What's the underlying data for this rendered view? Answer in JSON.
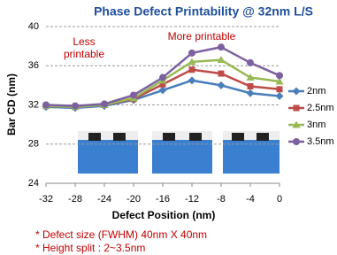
{
  "chart_data": {
    "type": "line",
    "title": "Phase Defect Printability @ 32nm L/S",
    "x_label": "Defect Position (nm)",
    "y_label": "Bar CD (nm)",
    "x": [
      -32,
      -28,
      -24,
      -20,
      -16,
      -12,
      -8,
      -4,
      0
    ],
    "xlim": [
      -32,
      0
    ],
    "xticks": [
      -32,
      -28,
      -24,
      -20,
      -16,
      -12,
      -8,
      -4,
      0
    ],
    "ylim": [
      24,
      40
    ],
    "yticks": [
      24,
      28,
      32,
      36,
      40
    ],
    "grid": true,
    "legend": "right",
    "series": [
      {
        "name": "2nm",
        "color": "#4a7ebb",
        "marker": "diamond",
        "values": [
          31.8,
          31.7,
          31.9,
          32.5,
          33.5,
          34.5,
          34.0,
          33.2,
          32.9
        ]
      },
      {
        "name": "2.5nm",
        "color": "#be4b48",
        "marker": "square",
        "values": [
          31.9,
          31.8,
          32.0,
          32.6,
          34.1,
          35.6,
          35.2,
          33.9,
          33.6
        ]
      },
      {
        "name": "3nm",
        "color": "#98b954",
        "marker": "triangle",
        "values": [
          31.9,
          31.8,
          32.0,
          32.7,
          34.5,
          36.4,
          36.6,
          34.8,
          34.4
        ]
      },
      {
        "name": "3.5nm",
        "color": "#7d60a0",
        "marker": "circle",
        "values": [
          32.0,
          31.9,
          32.1,
          33.0,
          34.8,
          37.3,
          37.9,
          36.3,
          35.0
        ]
      }
    ],
    "annotations": [
      [
        "Less",
        "printable"
      ],
      [
        "More printable"
      ]
    ],
    "notes": [
      "* Defect size (FWHM) 40nm X 40nm",
      "* Height split : 2~3.5nm"
    ]
  }
}
